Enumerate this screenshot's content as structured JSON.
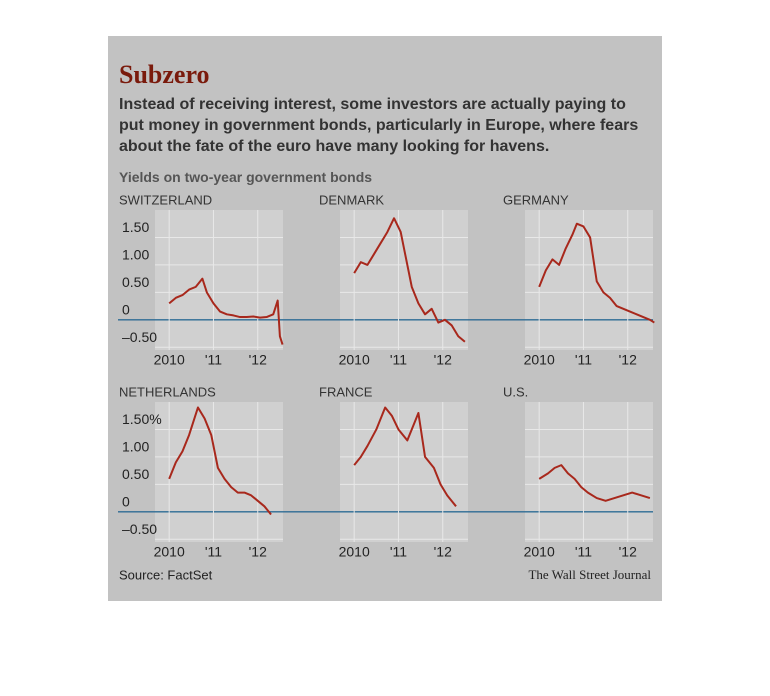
{
  "header": {
    "title": "Subzero",
    "description": "Instead of receiving interest, some investors are actually paying to put money in government bonds, particularly in Europe, where fears about the fate of the euro have many looking for havens.",
    "subtitle": "Yields on two-year government bonds"
  },
  "footer": {
    "source": "Source: FactSet",
    "credit": "The Wall Street Journal"
  },
  "chart_data": [
    {
      "type": "line",
      "title": "SWITZERLAND",
      "color": "#a8281c",
      "x": [
        2010.0,
        2010.15,
        2010.3,
        2010.45,
        2010.6,
        2010.75,
        2010.85,
        2011.0,
        2011.15,
        2011.3,
        2011.45,
        2011.6,
        2011.75,
        2011.9,
        2012.05,
        2012.2,
        2012.35,
        2012.45,
        2012.5,
        2012.56
      ],
      "values": [
        0.3,
        0.4,
        0.45,
        0.55,
        0.6,
        0.75,
        0.5,
        0.3,
        0.15,
        0.1,
        0.08,
        0.05,
        0.05,
        0.06,
        0.04,
        0.05,
        0.1,
        0.35,
        -0.3,
        -0.45
      ],
      "xlim": [
        2009.68,
        2012.57
      ],
      "ylim": [
        -0.55,
        2.0
      ],
      "xticks": [
        {
          "value": 2010,
          "label": "2010"
        },
        {
          "value": 2011,
          "label": "'11"
        },
        {
          "value": 2012,
          "label": "'12"
        }
      ],
      "yticks": [
        {
          "value": 1.5,
          "label": "1.50"
        },
        {
          "value": 1,
          "label": "1.00"
        },
        {
          "value": 0.5,
          "label": "0.50"
        },
        0,
        {
          "value": -0.5,
          "label": "–0.50"
        }
      ]
    },
    {
      "type": "line",
      "title": "DENMARK",
      "color": "#a8281c",
      "x": [
        2010.0,
        2010.15,
        2010.3,
        2010.45,
        2010.6,
        2010.75,
        2010.9,
        2011.05,
        2011.15,
        2011.3,
        2011.45,
        2011.6,
        2011.75,
        2011.9,
        2012.05,
        2012.2,
        2012.35,
        2012.5
      ],
      "values": [
        0.85,
        1.05,
        1.0,
        1.2,
        1.4,
        1.6,
        1.85,
        1.6,
        1.2,
        0.6,
        0.3,
        0.1,
        0.2,
        -0.05,
        0.0,
        -0.1,
        -0.3,
        -0.4
      ],
      "xlim": [
        2009.68,
        2012.57
      ],
      "ylim": [
        -0.55,
        2.0
      ],
      "xticks": [
        {
          "value": 2010,
          "label": "2010"
        },
        {
          "value": 2011,
          "label": "'11"
        },
        {
          "value": 2012,
          "label": "'12"
        }
      ],
      "yticks": [
        {
          "value": 1.5,
          "label": "1.50"
        },
        {
          "value": 1,
          "label": "1.00"
        },
        {
          "value": 0.5,
          "label": "0.50"
        },
        0,
        {
          "value": -0.5,
          "label": "–0.50"
        }
      ]
    },
    {
      "type": "line",
      "title": "GERMANY",
      "color": "#a8281c",
      "x": [
        2010.0,
        2010.15,
        2010.3,
        2010.45,
        2010.6,
        2010.75,
        2010.85,
        2011.0,
        2011.15,
        2011.3,
        2011.45,
        2011.6,
        2011.75,
        2011.9,
        2012.05,
        2012.2,
        2012.35,
        2012.5,
        2012.6
      ],
      "values": [
        0.6,
        0.9,
        1.1,
        1.0,
        1.3,
        1.55,
        1.75,
        1.7,
        1.5,
        0.7,
        0.5,
        0.4,
        0.25,
        0.2,
        0.15,
        0.1,
        0.05,
        0.0,
        -0.05
      ],
      "xlim": [
        2009.68,
        2012.57
      ],
      "ylim": [
        -0.55,
        2.0
      ],
      "xticks": [
        {
          "value": 2010,
          "label": "2010"
        },
        {
          "value": 2011,
          "label": "'11"
        },
        {
          "value": 2012,
          "label": "'12"
        }
      ],
      "yticks": [
        {
          "value": 1.5,
          "label": "1.50"
        },
        {
          "value": 1,
          "label": "1.00"
        },
        {
          "value": 0.5,
          "label": "0.50"
        },
        0,
        {
          "value": -0.5,
          "label": "–0.50"
        }
      ]
    },
    {
      "type": "line",
      "title": "NETHERLANDS",
      "color": "#a8281c",
      "x": [
        2010.0,
        2010.15,
        2010.3,
        2010.45,
        2010.65,
        2010.8,
        2010.95,
        2011.1,
        2011.25,
        2011.4,
        2011.55,
        2011.7,
        2011.85,
        2012.0,
        2012.15,
        2012.3
      ],
      "values": [
        0.6,
        0.9,
        1.1,
        1.4,
        1.9,
        1.7,
        1.4,
        0.8,
        0.6,
        0.45,
        0.35,
        0.35,
        0.3,
        0.2,
        0.1,
        -0.05
      ],
      "xlim": [
        2009.68,
        2012.57
      ],
      "ylim": [
        -0.55,
        2.0
      ],
      "xticks": [
        {
          "value": 2010,
          "label": "2010"
        },
        {
          "value": 2011,
          "label": "'11"
        },
        {
          "value": 2012,
          "label": "'12"
        }
      ],
      "yticks": [
        {
          "value": 1.5,
          "label": "1.50%"
        },
        {
          "value": 1,
          "label": "1.00"
        },
        {
          "value": 0.5,
          "label": "0.50"
        },
        0,
        {
          "value": -0.5,
          "label": "–0.50"
        }
      ]
    },
    {
      "type": "line",
      "title": "FRANCE",
      "color": "#a8281c",
      "x": [
        2010.0,
        2010.15,
        2010.3,
        2010.5,
        2010.7,
        2010.85,
        2011.0,
        2011.2,
        2011.35,
        2011.45,
        2011.6,
        2011.8,
        2011.95,
        2012.1,
        2012.2,
        2012.3
      ],
      "values": [
        0.85,
        1.0,
        1.2,
        1.5,
        1.9,
        1.75,
        1.5,
        1.3,
        1.6,
        1.8,
        1.0,
        0.8,
        0.5,
        0.3,
        0.2,
        0.1
      ],
      "xlim": [
        2009.68,
        2012.57
      ],
      "ylim": [
        -0.55,
        2.0
      ],
      "xticks": [
        {
          "value": 2010,
          "label": "2010"
        },
        {
          "value": 2011,
          "label": "'11"
        },
        {
          "value": 2012,
          "label": "'12"
        }
      ],
      "yticks": [
        {
          "value": 1.5,
          "label": "1.50%"
        },
        {
          "value": 1,
          "label": "1.00"
        },
        {
          "value": 0.5,
          "label": "0.50"
        },
        0,
        {
          "value": -0.5,
          "label": "–0.50"
        }
      ]
    },
    {
      "type": "line",
      "title": "U.S.",
      "color": "#a8281c",
      "x": [
        2010.0,
        2010.2,
        2010.35,
        2010.5,
        2010.65,
        2010.8,
        2010.95,
        2011.1,
        2011.3,
        2011.5,
        2011.7,
        2011.9,
        2012.1,
        2012.3,
        2012.5
      ],
      "values": [
        0.6,
        0.7,
        0.8,
        0.85,
        0.7,
        0.6,
        0.45,
        0.35,
        0.25,
        0.2,
        0.25,
        0.3,
        0.35,
        0.3,
        0.25
      ],
      "xlim": [
        2009.68,
        2012.57
      ],
      "ylim": [
        -0.55,
        2.0
      ],
      "xticks": [
        {
          "value": 2010,
          "label": "2010"
        },
        {
          "value": 2011,
          "label": "'11"
        },
        {
          "value": 2012,
          "label": "'12"
        }
      ],
      "yticks": [
        {
          "value": 1.5,
          "label": "1.50%"
        },
        {
          "value": 1,
          "label": "1.00"
        },
        {
          "value": 0.5,
          "label": "0.50"
        },
        0,
        {
          "value": -0.5,
          "label": "–0.50"
        }
      ]
    }
  ]
}
